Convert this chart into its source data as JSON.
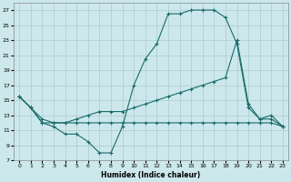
{
  "title": "",
  "xlabel": "Humidex (Indice chaleur)",
  "bg_color": "#cce8ec",
  "grid_color": "#aacccc",
  "line_color": "#1a6b6b",
  "xlim": [
    -0.5,
    23.5
  ],
  "ylim": [
    7,
    28
  ],
  "yticks": [
    7,
    9,
    11,
    13,
    15,
    17,
    19,
    21,
    23,
    25,
    27
  ],
  "xticks": [
    0,
    1,
    2,
    3,
    4,
    5,
    6,
    7,
    8,
    9,
    10,
    11,
    12,
    13,
    14,
    15,
    16,
    17,
    18,
    19,
    20,
    21,
    22,
    23
  ],
  "line1_x": [
    0,
    1,
    2,
    3,
    4,
    5,
    6,
    7,
    8,
    9,
    10,
    11,
    12,
    13,
    14,
    15,
    16,
    17,
    18,
    19,
    20,
    21,
    22,
    23
  ],
  "line1_y": [
    15.5,
    14.0,
    12.0,
    11.5,
    10.5,
    10.5,
    9.5,
    8.0,
    8.0,
    11.5,
    17.0,
    20.5,
    22.5,
    26.5,
    26.5,
    27.0,
    27.0,
    27.0,
    26.0,
    22.5,
    14.0,
    12.5,
    13.0,
    11.5
  ],
  "line2_x": [
    0,
    1,
    2,
    3,
    4,
    5,
    6,
    7,
    8,
    9,
    10,
    11,
    12,
    13,
    14,
    15,
    16,
    17,
    18,
    19,
    20,
    21,
    22,
    23
  ],
  "line2_y": [
    15.5,
    14.0,
    12.5,
    12.0,
    12.0,
    12.5,
    13.0,
    13.5,
    13.5,
    13.5,
    14.0,
    14.5,
    15.0,
    15.5,
    16.0,
    16.5,
    17.0,
    17.5,
    18.0,
    23.0,
    14.5,
    12.5,
    12.5,
    11.5
  ],
  "line3_x": [
    0,
    1,
    2,
    3,
    4,
    5,
    6,
    7,
    8,
    9,
    10,
    11,
    12,
    13,
    14,
    15,
    16,
    17,
    18,
    19,
    20,
    21,
    22,
    23
  ],
  "line3_y": [
    15.5,
    14.0,
    12.0,
    12.0,
    12.0,
    12.0,
    12.0,
    12.0,
    12.0,
    12.0,
    12.0,
    12.0,
    12.0,
    12.0,
    12.0,
    12.0,
    12.0,
    12.0,
    12.0,
    12.0,
    12.0,
    12.0,
    12.0,
    11.5
  ]
}
